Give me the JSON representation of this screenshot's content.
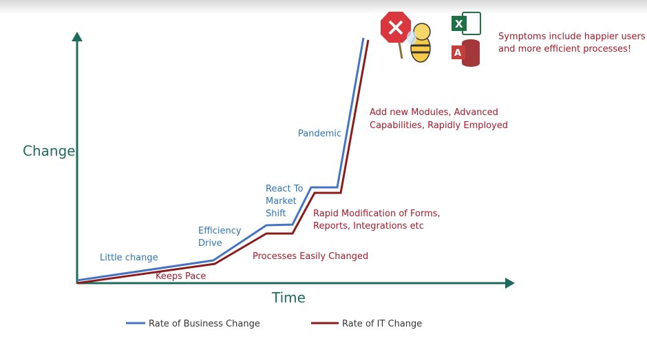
{
  "axes": {
    "y_label": "Change",
    "x_label": "Time"
  },
  "annotations": {
    "little_change": "Little change",
    "efficiency_drive": [
      "Efficiency",
      "Drive"
    ],
    "react_to_market_shift": [
      "React To",
      "Market",
      "Shift"
    ],
    "pandemic": "Pandemic",
    "keeps_pace": "Keeps Pace",
    "processes_easily_changed": "Processes Easily Changed",
    "rapid_modification": [
      "Rapid Modification of Forms,",
      "Reports, Integrations etc"
    ],
    "add_new_modules": [
      "Add new Modules, Advanced",
      "Capabilities, Rapidly Employed"
    ],
    "symptoms": [
      "Symptoms include happier users",
      "and more efficient processes!"
    ]
  },
  "legend": [
    "Rate of Business Change",
    "Rate of IT Change"
  ]
}
